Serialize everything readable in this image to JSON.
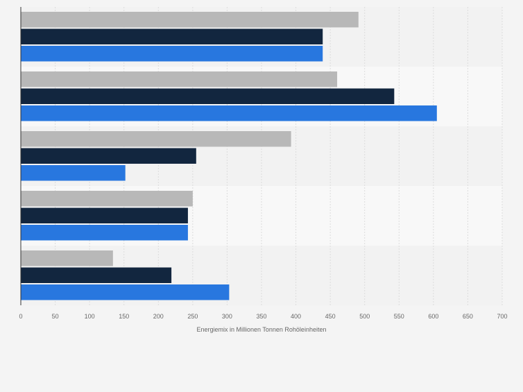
{
  "chart_data": {
    "type": "bar",
    "orientation": "horizontal",
    "categories": [
      "",
      "",
      "",
      "",
      ""
    ],
    "series": [
      {
        "color": "#b8b8b8",
        "values": [
          491,
          460,
          393,
          250,
          134
        ]
      },
      {
        "color": "#12263f",
        "values": [
          439,
          543,
          255,
          243,
          219
        ]
      },
      {
        "color": "#2877df",
        "values": [
          439,
          605,
          152,
          243,
          303
        ]
      }
    ],
    "xlabel": "Energiemix in Millionen Tonnen Rohöleinheiten",
    "ylabel": "",
    "xlim": [
      0,
      700
    ],
    "xticks": [
      0,
      50,
      100,
      150,
      200,
      250,
      300,
      350,
      400,
      450,
      500,
      550,
      600,
      650,
      700
    ],
    "xtick_labels": [
      "0",
      "50",
      "100",
      "150",
      "200",
      "250",
      "300",
      "350",
      "400",
      "450",
      "500",
      "550",
      "600",
      "650",
      "700"
    ],
    "grid": "vertical",
    "legend": "none",
    "colors": {
      "page_background": "#f4f4f4",
      "plot_band_light": "#f8f8f8",
      "plot_band_dark": "#f2f2f2",
      "grid": "#dcdcdc",
      "axis": "#333333",
      "tick_text": "#666666"
    }
  }
}
